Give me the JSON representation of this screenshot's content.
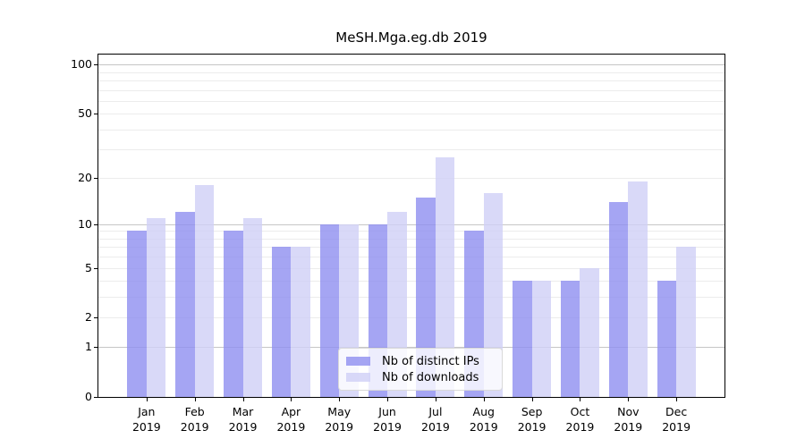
{
  "title": "MeSH.Mga.eg.db 2019",
  "chart_data": {
    "type": "bar",
    "title": "MeSH.Mga.eg.db 2019",
    "categories": [
      "Jan",
      "Feb",
      "Mar",
      "Apr",
      "May",
      "Jun",
      "Jul",
      "Aug",
      "Sep",
      "Oct",
      "Nov",
      "Dec"
    ],
    "category_year": "2019",
    "series": [
      {
        "name": "Nb of distinct IPs",
        "color": "rgba(142,142,240,0.8)",
        "values": [
          9,
          12,
          9,
          7,
          10,
          10,
          15,
          9,
          4,
          4,
          14,
          4
        ]
      },
      {
        "name": "Nb of downloads",
        "color": "rgba(208,208,246,0.8)",
        "values": [
          11,
          18,
          11,
          7,
          10,
          12,
          27,
          16,
          4,
          5,
          19,
          7
        ]
      }
    ],
    "xlabel": "",
    "ylabel": "",
    "y_axis": {
      "scale": "log1p",
      "ticks": [
        0,
        1,
        2,
        5,
        10,
        20,
        50,
        100
      ],
      "limit_top": 115,
      "major_gridlines": [
        1,
        10,
        100
      ],
      "minor_gridlines": [
        2,
        3,
        4,
        5,
        6,
        7,
        8,
        9,
        20,
        30,
        40,
        50,
        60,
        70,
        80,
        90
      ]
    },
    "grid": "on",
    "legend_position": "inside-bottom-center"
  },
  "colors": {
    "bar_distinct_ips": "rgba(142,142,240,0.8)",
    "bar_downloads": "rgba(208,208,246,0.8)",
    "grid_minor": "#ececec",
    "grid_major": "#c6c6c6",
    "axis": "#000000",
    "legend_border": "#d9d9d9",
    "legend_background": "rgba(255,255,255,0.8)"
  }
}
